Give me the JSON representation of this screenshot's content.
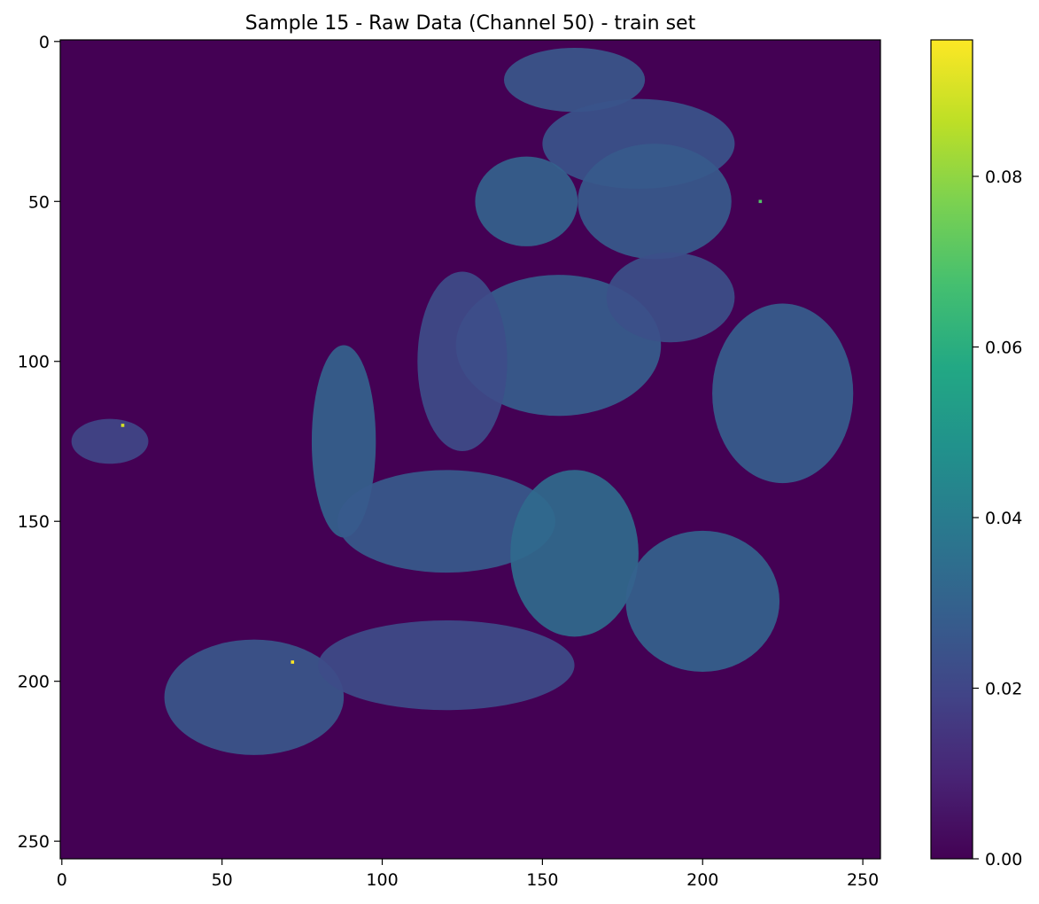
{
  "chart_data": {
    "type": "heatmap",
    "title": "Sample 15 - Raw Data (Channel 50) - train set",
    "xlabel": "",
    "ylabel": "",
    "image_shape": [
      256,
      256
    ],
    "xlim": [
      -0.5,
      255.5
    ],
    "ylim": [
      255.5,
      -0.5
    ],
    "x_ticks": [
      0,
      50,
      100,
      150,
      200,
      250
    ],
    "y_ticks": [
      0,
      50,
      100,
      150,
      200,
      250
    ],
    "colormap": "viridis",
    "colorbar": {
      "vmin": 0.0,
      "vmax": 0.096,
      "ticks": [
        0.0,
        0.02,
        0.04,
        0.06,
        0.08
      ],
      "tick_labels": [
        "0.00",
        "0.02",
        "0.04",
        "0.06",
        "0.08"
      ]
    },
    "background_value": 0.0,
    "typical_tissue_value_range": [
      0.015,
      0.035
    ],
    "hotspots": [
      {
        "x": 72,
        "y": 194,
        "value": 0.096
      },
      {
        "x": 19,
        "y": 120,
        "value": 0.09
      },
      {
        "x": 218,
        "y": 50,
        "value": 0.07
      }
    ],
    "tissue_regions": [
      {
        "cx": 160,
        "cy": 12,
        "rx": 22,
        "ry": 10,
        "value": 0.026
      },
      {
        "cx": 180,
        "cy": 32,
        "rx": 30,
        "ry": 14,
        "value": 0.025
      },
      {
        "cx": 145,
        "cy": 50,
        "rx": 16,
        "ry": 14,
        "value": 0.03
      },
      {
        "cx": 185,
        "cy": 50,
        "rx": 24,
        "ry": 18,
        "value": 0.027
      },
      {
        "cx": 155,
        "cy": 95,
        "rx": 32,
        "ry": 22,
        "value": 0.028
      },
      {
        "cx": 125,
        "cy": 100,
        "rx": 14,
        "ry": 28,
        "value": 0.022
      },
      {
        "cx": 190,
        "cy": 80,
        "rx": 20,
        "ry": 14,
        "value": 0.023
      },
      {
        "cx": 225,
        "cy": 110,
        "rx": 22,
        "ry": 28,
        "value": 0.028
      },
      {
        "cx": 88,
        "cy": 125,
        "rx": 10,
        "ry": 30,
        "value": 0.03
      },
      {
        "cx": 120,
        "cy": 150,
        "rx": 34,
        "ry": 16,
        "value": 0.027
      },
      {
        "cx": 160,
        "cy": 160,
        "rx": 20,
        "ry": 26,
        "value": 0.033
      },
      {
        "cx": 200,
        "cy": 175,
        "rx": 24,
        "ry": 22,
        "value": 0.03
      },
      {
        "cx": 60,
        "cy": 205,
        "rx": 28,
        "ry": 18,
        "value": 0.026
      },
      {
        "cx": 120,
        "cy": 195,
        "rx": 40,
        "ry": 14,
        "value": 0.022
      },
      {
        "cx": 15,
        "cy": 125,
        "rx": 12,
        "ry": 7,
        "value": 0.02
      }
    ]
  }
}
